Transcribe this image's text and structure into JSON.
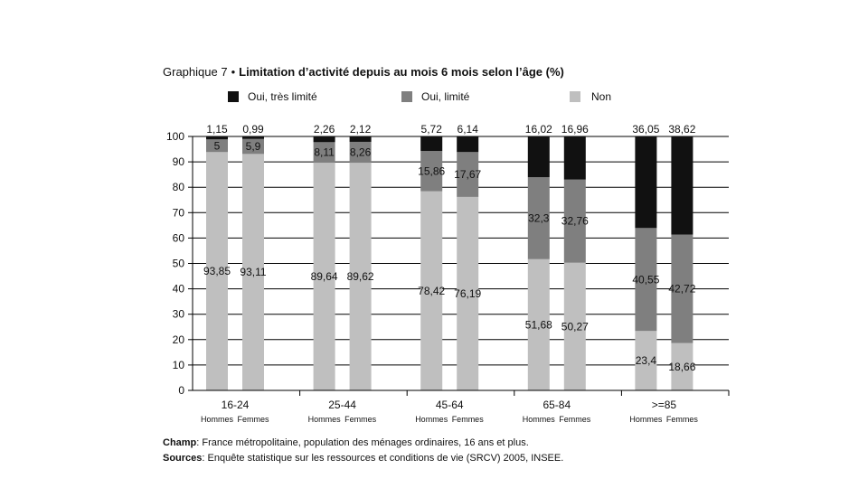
{
  "title_prefix": "Graphique 7",
  "title_separator": "•",
  "title": "Limitation d’activité depuis au mois 6 mois selon l’âge (%)",
  "colors": {
    "tres_limite": "#111111",
    "limite": "#7f7f7f",
    "non": "#bfbfbf"
  },
  "footnotes": {
    "champ_label": "Champ",
    "champ_text": ": France métropolitaine, population des ménages ordinaires, 16 ans et plus.",
    "sources_label": "Sources",
    "sources_text": ": Enquête statistique sur les ressources et conditions de vie (SRCV) 2005, INSEE."
  },
  "chart_data": {
    "type": "bar",
    "stacked": true,
    "ylim": [
      0,
      100
    ],
    "yticks": [
      0,
      10,
      20,
      30,
      40,
      50,
      60,
      70,
      80,
      90,
      100
    ],
    "grid": true,
    "legend_position": "top",
    "groups": [
      "16-24",
      "25-44",
      "45-64",
      "65-84",
      ">=85"
    ],
    "subcategories": [
      "Hommes",
      "Femmes"
    ],
    "series": [
      {
        "name": "Non",
        "color_key": "non",
        "values": [
          [
            93.85,
            93.11
          ],
          [
            89.64,
            89.62
          ],
          [
            78.42,
            76.19
          ],
          [
            51.68,
            50.27
          ],
          [
            23.4,
            18.66
          ]
        ],
        "labels": [
          [
            "93,85",
            "93,11"
          ],
          [
            "89,64",
            "89,62"
          ],
          [
            "78,42",
            "76,19"
          ],
          [
            "51,68",
            "50,27"
          ],
          [
            "23,4",
            "18,66"
          ]
        ]
      },
      {
        "name": "Oui, limité",
        "color_key": "limite",
        "values": [
          [
            5,
            5.9
          ],
          [
            8.11,
            8.26
          ],
          [
            15.86,
            17.67
          ],
          [
            32.3,
            32.76
          ],
          [
            40.55,
            42.72
          ]
        ],
        "labels": [
          [
            "5",
            "5,9"
          ],
          [
            "8,11",
            "8,26"
          ],
          [
            "15,86",
            "17,67"
          ],
          [
            "32,3",
            "32,76"
          ],
          [
            "40,55",
            "42,72"
          ]
        ]
      },
      {
        "name": "Oui, très limité",
        "color_key": "tres_limite",
        "values": [
          [
            1.15,
            0.99
          ],
          [
            2.26,
            2.12
          ],
          [
            5.72,
            6.14
          ],
          [
            16.02,
            16.96
          ],
          [
            36.05,
            38.62
          ]
        ],
        "labels": [
          [
            "1,15",
            "0,99"
          ],
          [
            "2,26",
            "2,12"
          ],
          [
            "5,72",
            "6,14"
          ],
          [
            "16,02",
            "16,96"
          ],
          [
            "36,05",
            "38,62"
          ]
        ]
      }
    ],
    "legend_order": [
      "Oui, très limité",
      "Oui, limité",
      "Non"
    ]
  }
}
